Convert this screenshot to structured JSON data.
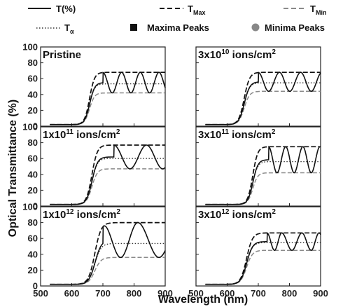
{
  "legend": {
    "t_label": "T(%)",
    "tmax_label": "T",
    "tmax_sub": "Max",
    "tmin_label": "T",
    "tmin_sub": "Min",
    "talpha_label": "T",
    "talpha_sub": "α",
    "maxima_label": "Maxima Peaks",
    "minima_label": "Minima Peaks"
  },
  "colors": {
    "t_line": "#111111",
    "tmax_line": "#111111",
    "tmin_line": "#8a8a8a",
    "talpha_line": "#333333",
    "maxima_marker": "#111111",
    "minima_marker": "#888888"
  },
  "chart_data": {
    "type": "line",
    "xlabel": "Wavelength (nm)",
    "ylabel": "Optical Transmittance (%)",
    "xlim": [
      500,
      900
    ],
    "ylim": [
      0,
      100
    ],
    "xticks": [
      500,
      600,
      700,
      800,
      900
    ],
    "yticks": [
      0,
      20,
      40,
      60,
      80,
      100
    ],
    "xtick_labels": [
      "500",
      "600",
      "700",
      "800",
      "900"
    ],
    "ytick_labels": [
      "0",
      "20",
      "40",
      "60",
      "80",
      "100"
    ],
    "layout": "3 rows x 2 columns, shared axes",
    "panels": [
      {
        "label_main": "Pristine",
        "label_exp": "",
        "label_unit": "",
        "onset": 630,
        "width": 32,
        "t_max": 68,
        "t_min": 42,
        "peak_maxima": [
          700,
          760,
          820,
          880
        ],
        "peak_minima": [
          730,
          790,
          850
        ]
      },
      {
        "label_main": "3x10",
        "label_exp": "10",
        "label_unit": " ions/cm",
        "onset": 625,
        "width": 35,
        "t_max": 68,
        "t_min": 44,
        "peak_maxima": [
          700,
          768,
          836
        ],
        "peak_minima": [
          733,
          801,
          870
        ]
      },
      {
        "label_main": "1x10",
        "label_exp": "11",
        "label_unit": " ions/cm",
        "onset": 635,
        "width": 35,
        "t_max": 77,
        "t_min": 47,
        "peak_maxima": [
          735,
          840
        ],
        "peak_minima": [
          787,
          892
        ]
      },
      {
        "label_main": "3x10",
        "label_exp": "11",
        "label_unit": " ions/cm",
        "onset": 655,
        "width": 32,
        "t_max": 75,
        "t_min": 42,
        "peak_maxima": [
          733,
          788,
          843,
          898
        ],
        "peak_minima": [
          760,
          815,
          870
        ]
      },
      {
        "label_main": "1x10",
        "label_exp": "12",
        "label_unit": " ions/cm",
        "onset": 640,
        "width": 40,
        "t_max": 80,
        "t_min": 36,
        "peak_maxima": [
          700,
          812
        ],
        "peak_minima": [
          757,
          880
        ]
      },
      {
        "label_main": "3x10",
        "label_exp": "12",
        "label_unit": " ions/cm",
        "onset": 630,
        "width": 38,
        "t_max": 67,
        "t_min": 45,
        "peak_maxima": [
          728,
          775,
          840,
          895
        ],
        "peak_minima": [
          752,
          808,
          870
        ]
      }
    ]
  }
}
